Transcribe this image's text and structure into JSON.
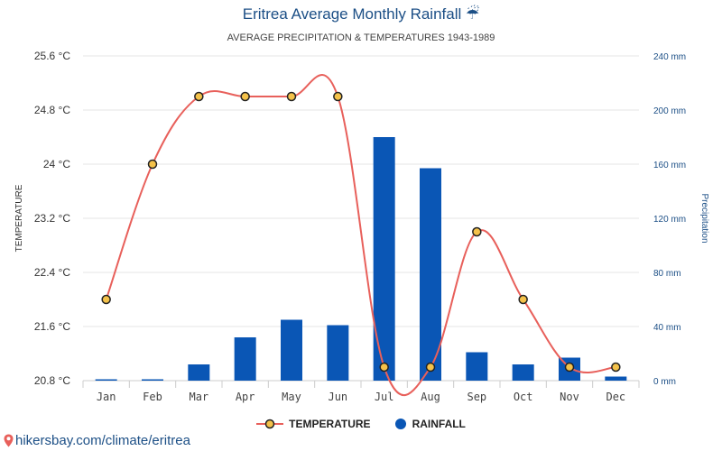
{
  "header": {
    "title": "Eritrea Average Monthly Rainfall",
    "title_icon": "umbrella-rain-icon",
    "subtitle": "AVERAGE PRECIPITATION & TEMPERATURES 1943-1989"
  },
  "legend": {
    "temperature_label": "TEMPERATURE",
    "rainfall_label": "RAINFALL"
  },
  "source": {
    "text": "hikersbay.com/climate/eritrea",
    "icon": "map-pin-icon"
  },
  "colors": {
    "temperature_line": "#e8605b",
    "temperature_marker_fill": "#f4c24a",
    "rainfall_bar": "#0a56b5",
    "right_axis": "#1c4f86",
    "grid": "#e6e6e6"
  },
  "chart_data": {
    "type": "bar",
    "categories": [
      "Jan",
      "Feb",
      "Mar",
      "Apr",
      "May",
      "Jun",
      "Jul",
      "Aug",
      "Sep",
      "Oct",
      "Nov",
      "Dec"
    ],
    "series": [
      {
        "name": "RAINFALL",
        "type": "bar",
        "axis": "right",
        "values": [
          1,
          1,
          12,
          32,
          45,
          41,
          180,
          157,
          21,
          12,
          17,
          3
        ]
      },
      {
        "name": "TEMPERATURE",
        "type": "line",
        "axis": "left",
        "values": [
          22,
          24,
          25,
          25,
          25,
          25,
          21,
          21,
          23,
          22,
          21,
          21
        ]
      }
    ],
    "ylabel": "TEMPERATURE",
    "ylabel_right": "Precipitation",
    "ylim": [
      20.8,
      25.6
    ],
    "yticks": [
      "25.6 °C",
      "24.8 °C",
      "24 °C",
      "23.2 °C",
      "22.4 °C",
      "21.6 °C",
      "20.8 °C"
    ],
    "ylim_right": [
      0,
      240
    ],
    "yticks_right": [
      "240 mm",
      "200 mm",
      "160 mm",
      "120 mm",
      "80 mm",
      "40 mm",
      "0 mm"
    ],
    "grid": true,
    "legend_position": "bottom"
  }
}
